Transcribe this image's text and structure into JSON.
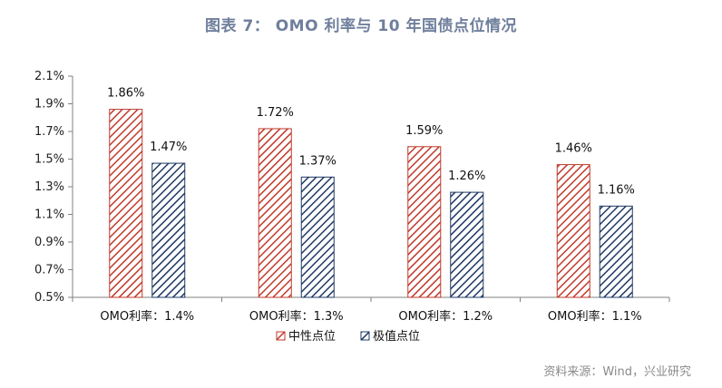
{
  "figure_title": "图表 7：  OMO 利率与 10 年国债点位情况",
  "source_note": "资料来源：Wind，兴业研究",
  "colors": {
    "red": "#c0392b",
    "navy": "#1f3864",
    "axis": "#808080"
  },
  "chart_data": {
    "type": "bar",
    "title": "",
    "xlabel": "",
    "ylabel": "",
    "categories": [
      "OMO利率：1.4%",
      "OMO利率：1.3%",
      "OMO利率：1.2%",
      "OMO利率：1.1%"
    ],
    "series": [
      {
        "name": "中性点位",
        "values": [
          1.86,
          1.72,
          1.59,
          1.46
        ],
        "labels": [
          "1.86%",
          "1.72%",
          "1.59%",
          "1.46%"
        ]
      },
      {
        "name": "极值点位",
        "values": [
          1.47,
          1.37,
          1.26,
          1.16
        ],
        "labels": [
          "1.47%",
          "1.37%",
          "1.26%",
          "1.16%"
        ]
      }
    ],
    "ylim": [
      0.5,
      2.1
    ],
    "yticks": [
      0.5,
      0.7,
      0.9,
      1.1,
      1.3,
      1.5,
      1.7,
      1.9,
      2.1
    ],
    "ytick_labels": [
      "0.5%",
      "0.7%",
      "0.9%",
      "1.1%",
      "1.3%",
      "1.5%",
      "1.7%",
      "1.9%",
      "2.1%"
    ],
    "grid": false,
    "legend": "bottom"
  }
}
